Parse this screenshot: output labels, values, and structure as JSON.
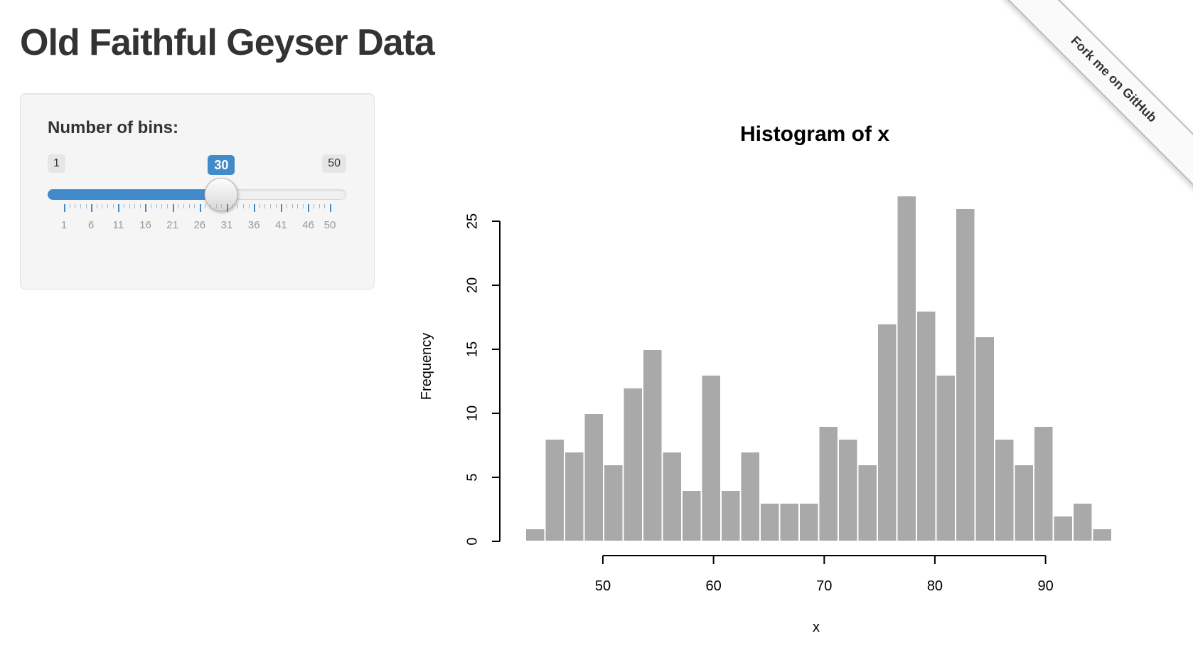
{
  "page": {
    "title": "Old Faithful Geyser Data"
  },
  "github_ribbon": {
    "label": "Fork me on GitHub"
  },
  "sidebar": {
    "bins_slider": {
      "label": "Number of bins:",
      "min": 1,
      "max": 50,
      "value": 30,
      "min_display": "1",
      "max_display": "50",
      "value_display": "30",
      "grid_labels": [
        1,
        6,
        11,
        16,
        21,
        26,
        31,
        36,
        41,
        46,
        50
      ],
      "accent_color": "#428bca"
    }
  },
  "chart_data": {
    "type": "bar",
    "title": "Histogram of x",
    "xlabel": "x",
    "ylabel": "Frequency",
    "bin_start": 43,
    "bin_end": 96,
    "bin_count": 30,
    "counts": [
      1,
      8,
      7,
      10,
      6,
      12,
      15,
      7,
      4,
      13,
      4,
      7,
      3,
      3,
      3,
      9,
      8,
      6,
      17,
      27,
      18,
      13,
      26,
      16,
      8,
      6,
      9,
      2,
      3,
      1
    ],
    "x_ticks": [
      50,
      60,
      70,
      80,
      90
    ],
    "y_ticks": [
      0,
      5,
      10,
      15,
      20,
      25
    ],
    "ylim": [
      0,
      27
    ],
    "grid": false,
    "bar_color": "#A9A9A9",
    "bar_border_color": "#FFFFFF",
    "axis_color": "#000000"
  }
}
